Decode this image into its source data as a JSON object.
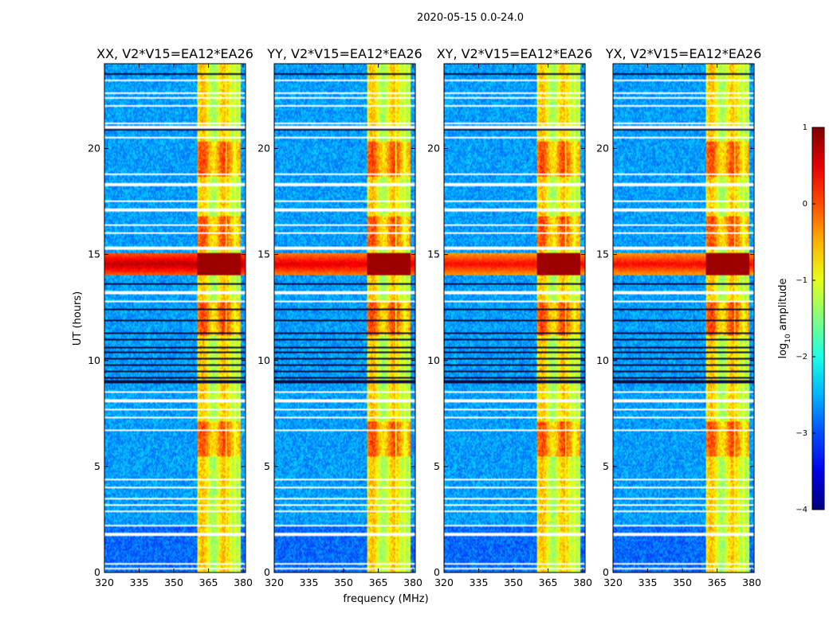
{
  "chart_data": {
    "type": "heatmap",
    "suptitle": "2020-05-15 0.0-24.0",
    "xlabel": "frequency (MHz)",
    "ylabel": "UT (hours)",
    "xlim": [
      320,
      381
    ],
    "ylim": [
      0,
      24
    ],
    "xticks": [
      "320",
      "335",
      "350",
      "365",
      "380"
    ],
    "xtick_values": [
      320,
      335,
      350,
      365,
      380
    ],
    "yticks": [
      "0",
      "5",
      "10",
      "15",
      "20"
    ],
    "ytick_values": [
      0,
      5,
      10,
      15,
      20
    ],
    "panels": [
      {
        "title": "XX, V2*V15=EA12*EA26",
        "band_mhz": [
          360,
          379
        ],
        "flare_level": 0.92
      },
      {
        "title": "YY, V2*V15=EA12*EA26",
        "band_mhz": [
          360,
          379
        ],
        "flare_level": 0.88
      },
      {
        "title": "XY, V2*V15=EA12*EA26",
        "band_mhz": [
          360,
          379
        ],
        "flare_level": 0.85
      },
      {
        "title": "YX, V2*V15=EA12*EA26",
        "band_mhz": [
          360,
          379
        ],
        "flare_level": 0.85
      }
    ],
    "colorbar": {
      "label": "log10 amplitude",
      "label_main": "log",
      "label_sub": "10",
      "label_rest": " amplitude",
      "range": [
        -4,
        1
      ],
      "ticks": [
        "1",
        "0",
        "−1",
        "−2",
        "−3",
        "−4"
      ],
      "tick_values": [
        1,
        0,
        -1,
        -2,
        -3,
        -4
      ],
      "colormap": "jet"
    },
    "flare_time_ut": [
      14.0,
      15.1
    ],
    "band_peak_times_ut": [
      6.3,
      12.0,
      16.0,
      19.5
    ],
    "blank_rows_ut": [
      0.2,
      0.4,
      1.8,
      2.2,
      2.9,
      3.2,
      3.5,
      4.0,
      4.4,
      6.7,
      7.3,
      7.7,
      8.1,
      8.5,
      12.8,
      13.2,
      15.3,
      16.0,
      16.4,
      17.1,
      17.5,
      18.3,
      18.8,
      20.5,
      21.0,
      21.2,
      22.0,
      22.4,
      22.6,
      23.2
    ],
    "dark_rows_ut": [
      9.0,
      9.2,
      9.5,
      9.8,
      10.1,
      10.4,
      10.6,
      11.0,
      11.3,
      11.9,
      12.4,
      13.6,
      20.9,
      23.5
    ],
    "sparse_vertical_gaps_mhz": [
      372.5,
      376.5
    ]
  }
}
